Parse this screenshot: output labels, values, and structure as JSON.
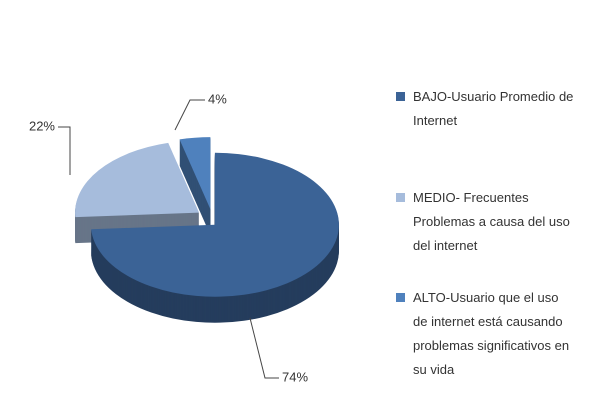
{
  "chart_data": {
    "type": "pie",
    "categories": [
      "BAJO-Usuario Promedio de Internet",
      "MEDIO- Frecuentes Problemas a causa del uso del internet",
      "ALTO-Usuario que el uso de internet está causando problemas significativos en su vida"
    ],
    "values": [
      74,
      22,
      4
    ],
    "value_labels": [
      "74%",
      "22%",
      "4%"
    ],
    "colors": [
      "#3b6396",
      "#a6bcdc",
      "#4f81bd"
    ],
    "legend": "right"
  }
}
